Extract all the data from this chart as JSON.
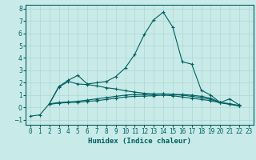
{
  "title": "",
  "xlabel": "Humidex (Indice chaleur)",
  "ylabel": "",
  "background_color": "#c8eae8",
  "grid_color": "#b0d8d0",
  "line_color": "#006060",
  "xlim": [
    -0.5,
    23.5
  ],
  "ylim": [
    -1.4,
    8.3
  ],
  "x": [
    0,
    1,
    2,
    3,
    4,
    5,
    6,
    7,
    8,
    9,
    10,
    11,
    12,
    13,
    14,
    15,
    16,
    17,
    18,
    19,
    20,
    21,
    22,
    23
  ],
  "line1": [
    -0.7,
    -0.6,
    0.3,
    1.7,
    2.2,
    2.6,
    1.9,
    2.0,
    2.1,
    2.5,
    3.2,
    4.3,
    5.9,
    7.1,
    7.7,
    6.5,
    3.7,
    3.5,
    1.4,
    1.0,
    0.4,
    0.7,
    0.2,
    null
  ],
  "line2": [
    null,
    null,
    0.3,
    1.65,
    2.1,
    1.9,
    1.85,
    1.75,
    1.6,
    1.5,
    1.35,
    1.25,
    1.15,
    1.1,
    1.1,
    1.05,
    1.05,
    1.0,
    0.9,
    0.75,
    0.4,
    0.3,
    0.15,
    null
  ],
  "line3": [
    null,
    null,
    0.3,
    0.4,
    0.45,
    0.5,
    0.6,
    0.7,
    0.8,
    0.9,
    1.0,
    1.05,
    1.05,
    1.05,
    1.1,
    1.05,
    1.0,
    0.9,
    0.8,
    0.65,
    0.4,
    0.3,
    0.15,
    null
  ],
  "line4": [
    null,
    null,
    0.25,
    0.35,
    0.4,
    0.42,
    0.5,
    0.55,
    0.65,
    0.75,
    0.85,
    0.9,
    0.92,
    0.95,
    1.0,
    0.95,
    0.85,
    0.75,
    0.65,
    0.55,
    0.38,
    0.25,
    0.12,
    null
  ],
  "xtick_labels": [
    "0",
    "1",
    "2",
    "3",
    "4",
    "5",
    "6",
    "7",
    "8",
    "9",
    "10",
    "11",
    "12",
    "13",
    "14",
    "15",
    "16",
    "17",
    "18",
    "19",
    "20",
    "21",
    "22",
    "23"
  ]
}
